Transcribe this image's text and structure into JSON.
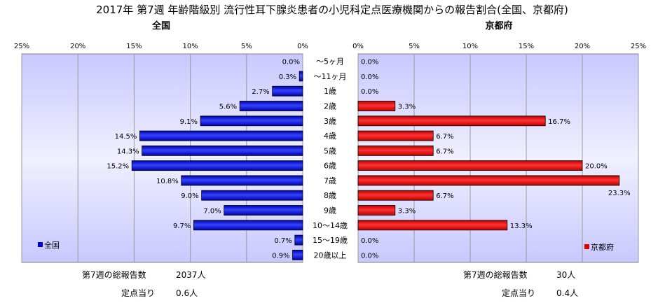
{
  "chart_data": {
    "type": "bar",
    "title": "2017年 第7週 年齢階級別 流行性耳下腺炎患者の小児科定点医療機関からの報告割合(全国、京都府)",
    "categories": [
      "～5ヶ月",
      "～11ヶ月",
      "1歳",
      "2歳",
      "3歳",
      "4歳",
      "5歳",
      "6歳",
      "7歳",
      "8歳",
      "9歳",
      "10～14歳",
      "15～19歳",
      "20歳以上"
    ],
    "x_tick_labels": [
      "0%",
      "5%",
      "10%",
      "15%",
      "20%",
      "25%"
    ],
    "xlim": [
      0,
      25
    ],
    "grid": true,
    "panels": [
      {
        "name": "全国",
        "series": [
          {
            "name": "全国",
            "values": [
              0.0,
              0.3,
              2.7,
              5.6,
              9.1,
              14.5,
              14.3,
              15.2,
              10.8,
              9.0,
              7.0,
              9.7,
              0.7,
              0.9
            ]
          }
        ],
        "value_labels": [
          "0.0%",
          "0.3%",
          "2.7%",
          "5.6%",
          "9.1%",
          "14.5%",
          "14.3%",
          "15.2%",
          "10.8%",
          "9.0%",
          "7.0%",
          "9.7%",
          "0.7%",
          "0.9%"
        ],
        "color": "#0000cc",
        "legend_position": "bottom-left",
        "footer": {
          "total_label": "第7週の総報告数",
          "total_value": "2037人",
          "per_label": "定点当り",
          "per_value": "0.6人"
        }
      },
      {
        "name": "京都府",
        "series": [
          {
            "name": "京都府",
            "values": [
              0.0,
              0.0,
              0.0,
              3.3,
              16.7,
              6.7,
              6.7,
              20.0,
              23.3,
              6.7,
              3.3,
              13.3,
              0.0,
              0.0
            ]
          }
        ],
        "value_labels": [
          "0.0%",
          "0.0%",
          "0.0%",
          "3.3%",
          "16.7%",
          "6.7%",
          "6.7%",
          "20.0%",
          "23.3%",
          "6.7%",
          "3.3%",
          "13.3%",
          "0.0%",
          "0.0%"
        ],
        "color": "#dd0000",
        "legend_position": "bottom-right",
        "footer": {
          "total_label": "第7週の総報告数",
          "total_value": "30人",
          "per_label": "定点当り",
          "per_value": "0.4人"
        }
      }
    ]
  }
}
